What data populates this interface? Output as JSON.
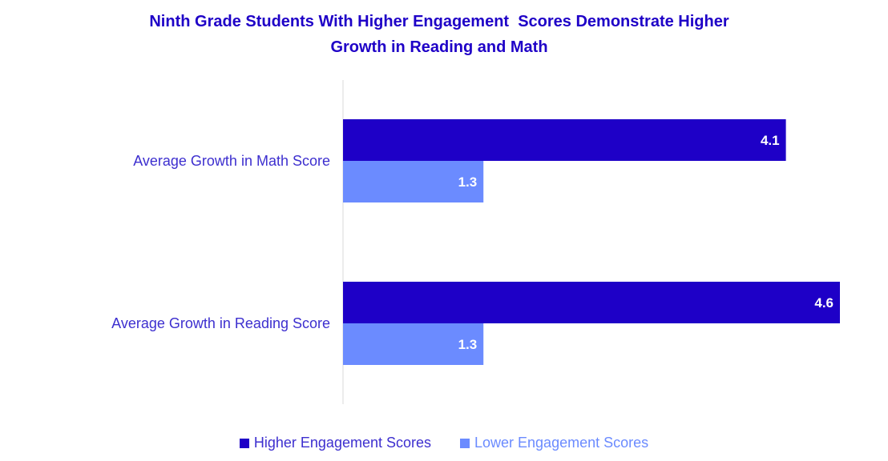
{
  "chart_data": {
    "type": "bar",
    "orientation": "horizontal",
    "title_lines": [
      "Ninth Grade Students With Higher Engagement  Scores Demonstrate Higher",
      "Growth in Reading and Math"
    ],
    "categories": [
      "Average Growth in Math Score",
      "Average Growth in Reading Score"
    ],
    "series": [
      {
        "name": "Higher Engagement Scores",
        "values": [
          4.1,
          4.6
        ],
        "color": "#1e00c7"
      },
      {
        "name": "Lower Engagement Scores",
        "values": [
          1.3,
          1.3
        ],
        "color": "#6b8bff"
      }
    ],
    "xlim": [
      0,
      4.6
    ],
    "grid": false,
    "legend_position": "bottom"
  }
}
